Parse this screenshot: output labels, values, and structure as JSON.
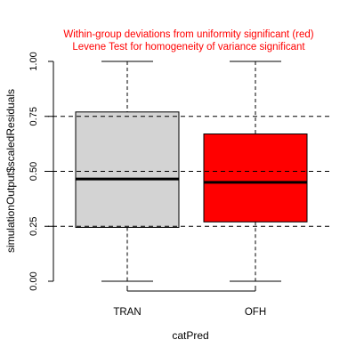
{
  "chart_data": {
    "type": "boxplot",
    "title_lines": [
      "Within-group deviations from uniformity significant (red)",
      "Levene Test for homogeneity of variance significant"
    ],
    "xlabel": "catPred",
    "ylabel": "simulationOutput$scaledResiduals",
    "ylim": [
      0,
      1
    ],
    "y_ticks": [
      "0.00",
      "0.25",
      "0.50",
      "0.75",
      "1.00"
    ],
    "reference_lines": [
      0.25,
      0.5,
      0.75
    ],
    "groups": [
      {
        "category": "TRAN",
        "min": 0.0,
        "q1": 0.245,
        "median": 0.465,
        "q3": 0.77,
        "max": 1.0,
        "fill": "#d3d3d3"
      },
      {
        "category": "OFH",
        "min": 0.0,
        "q1": 0.27,
        "median": 0.45,
        "q3": 0.67,
        "max": 1.0,
        "fill": "#ff0000"
      }
    ],
    "colors": {
      "title": "#ff0000",
      "axis": "#000000",
      "reference": "#000000"
    },
    "grid": false,
    "legend": "none"
  }
}
